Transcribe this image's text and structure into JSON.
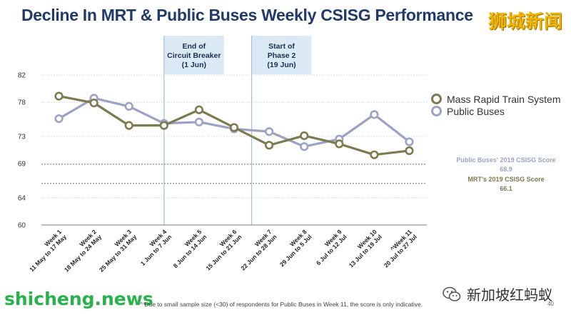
{
  "header": {
    "title": "Decline In MRT & Public Buses Weekly CSISG Performance"
  },
  "watermarks": {
    "top_right": "狮城新闻",
    "bottom_left": "shicheng.news",
    "bottom_right": "新加坡红蚂蚁",
    "wechat_icon": "wechat-icon"
  },
  "footnote": "^ Due to small sample size (<30) of respondents for Public Buses in Week 11, the score is only indicative.",
  "page_number": "40",
  "chart_data": {
    "type": "line",
    "title": "",
    "xlabel": "",
    "ylabel": "",
    "ylim": [
      60,
      82
    ],
    "y_ticks": [
      {
        "value": 60,
        "label": "60"
      },
      {
        "value": 64,
        "label": "64"
      },
      {
        "value": 69,
        "label": "69"
      },
      {
        "value": 73,
        "label": "73"
      },
      {
        "value": 78,
        "label": "78"
      },
      {
        "value": 82,
        "label": "82"
      }
    ],
    "grid": true,
    "legend_position": "right",
    "categories": [
      [
        "Week 1",
        "11 May to 17 May"
      ],
      [
        "Week 2",
        "18 May to 24 May"
      ],
      [
        "Week 3",
        "25 May to 31 May"
      ],
      [
        "Week 4",
        "1 Jun to 7 Jun"
      ],
      [
        "Week 5",
        "8 Jun to 14 Jun"
      ],
      [
        "Week 6",
        "15 Jun to 21 Jun"
      ],
      [
        "Week 7",
        "22 Jun to 28 Jun"
      ],
      [
        "Week 8",
        "29 Jun to 5 Jul"
      ],
      [
        "Week 9",
        "6 Jul to 12 Jul"
      ],
      [
        "Week 10",
        "13 Jul to 19 Jul"
      ],
      [
        "^Week 11",
        "20 Jul to 27 Jul"
      ]
    ],
    "series": [
      {
        "name": "Mass Rapid Train System",
        "color": "#7d7a4e",
        "values": [
          78.9,
          77.9,
          74.6,
          74.6,
          76.9,
          74.3,
          71.7,
          73.1,
          71.9,
          70.3,
          70.9
        ]
      },
      {
        "name": "Public Buses",
        "color": "#9aa3c6",
        "values": [
          75.6,
          78.6,
          77.4,
          74.9,
          75.1,
          74.1,
          73.7,
          71.5,
          72.6,
          76.2,
          72.2
        ]
      }
    ],
    "reference_lines": [
      {
        "label": "Public Buses' 2019 CSISG Score",
        "value_label": "68.9",
        "value": 68.9,
        "color": "#9aa3c6"
      },
      {
        "label": "MRT's 2019 CSISG Score",
        "value_label": "66.1",
        "value": 66.1,
        "color": "#7d7a4e"
      }
    ],
    "annotations": [
      {
        "lines": [
          "End of",
          "Circuit Breaker",
          "(1 Jun)"
        ],
        "category_index": 3
      },
      {
        "lines": [
          "Start of",
          "Phase 2",
          "(19 Jun)"
        ],
        "category_index": 5.5
      }
    ]
  }
}
